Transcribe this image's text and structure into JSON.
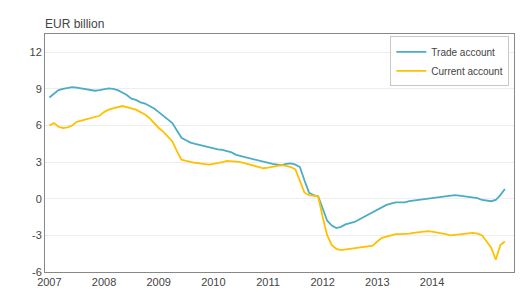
{
  "chart_data": {
    "type": "line",
    "title": "EUR billion",
    "x": [
      2007.0,
      2007.083,
      2007.167,
      2007.25,
      2007.333,
      2007.417,
      2007.5,
      2007.583,
      2007.667,
      2007.75,
      2007.833,
      2007.917,
      2008.0,
      2008.083,
      2008.167,
      2008.25,
      2008.333,
      2008.417,
      2008.5,
      2008.583,
      2008.667,
      2008.75,
      2008.833,
      2008.917,
      2009.0,
      2009.083,
      2009.167,
      2009.25,
      2009.333,
      2009.417,
      2009.5,
      2009.583,
      2009.667,
      2009.75,
      2009.833,
      2009.917,
      2010.0,
      2010.083,
      2010.167,
      2010.25,
      2010.333,
      2010.417,
      2010.5,
      2010.583,
      2010.667,
      2010.75,
      2010.833,
      2010.917,
      2011.0,
      2011.083,
      2011.167,
      2011.25,
      2011.333,
      2011.417,
      2011.5,
      2011.583,
      2011.667,
      2011.75,
      2011.833,
      2011.917,
      2012.0,
      2012.083,
      2012.167,
      2012.25,
      2012.333,
      2012.417,
      2012.5,
      2012.583,
      2012.667,
      2012.75,
      2012.833,
      2012.917,
      2013.0,
      2013.083,
      2013.167,
      2013.25,
      2013.333,
      2013.417,
      2013.5,
      2013.583,
      2013.667,
      2013.75,
      2013.833,
      2013.917,
      2014.0,
      2014.083,
      2014.167,
      2014.25,
      2014.333,
      2014.417,
      2014.5,
      2014.583,
      2014.667,
      2014.75,
      2014.833,
      2014.917,
      2015.0,
      2015.083,
      2015.167,
      2015.25,
      2015.333
    ],
    "series": [
      {
        "name": "Trade account",
        "color": "#4BACC6",
        "values": [
          8.3,
          8.6,
          8.9,
          9.0,
          9.1,
          9.15,
          9.1,
          9.05,
          9.0,
          8.9,
          8.85,
          8.9,
          9.0,
          9.05,
          9.0,
          8.9,
          8.7,
          8.5,
          8.2,
          8.1,
          7.9,
          7.8,
          7.6,
          7.4,
          7.1,
          6.8,
          6.5,
          6.2,
          5.6,
          5.0,
          4.8,
          4.6,
          4.5,
          4.4,
          4.3,
          4.2,
          4.1,
          4.05,
          4.0,
          3.9,
          3.8,
          3.6,
          3.5,
          3.4,
          3.3,
          3.2,
          3.1,
          3.0,
          2.9,
          2.85,
          2.8,
          2.75,
          2.85,
          2.9,
          2.8,
          2.6,
          1.5,
          0.5,
          0.3,
          0.2,
          -0.8,
          -1.8,
          -2.2,
          -2.4,
          -2.3,
          -2.1,
          -2.0,
          -1.9,
          -1.7,
          -1.5,
          -1.3,
          -1.1,
          -0.9,
          -0.7,
          -0.5,
          -0.4,
          -0.3,
          -0.3,
          -0.3,
          -0.2,
          -0.15,
          -0.1,
          -0.05,
          0.0,
          0.1,
          0.15,
          0.2,
          0.25,
          0.3,
          0.3,
          0.25,
          0.2,
          0.15,
          0.1,
          0.05,
          -0.1,
          -0.15,
          -0.2,
          -0.1,
          0.3,
          0.8
        ]
      },
      {
        "name": "Current account",
        "color": "#FFC000",
        "values": [
          6.0,
          6.2,
          5.9,
          5.8,
          5.85,
          6.0,
          6.3,
          6.4,
          6.5,
          6.6,
          6.7,
          6.8,
          7.1,
          7.3,
          7.4,
          7.5,
          7.6,
          7.5,
          7.4,
          7.3,
          7.1,
          6.9,
          6.6,
          6.2,
          5.8,
          5.5,
          5.1,
          4.7,
          3.9,
          3.2,
          3.1,
          3.0,
          2.95,
          2.9,
          2.85,
          2.8,
          2.85,
          2.9,
          3.0,
          3.1,
          3.1,
          3.05,
          3.0,
          2.9,
          2.8,
          2.7,
          2.6,
          2.5,
          2.55,
          2.6,
          2.7,
          2.75,
          2.7,
          2.6,
          2.4,
          1.5,
          0.5,
          0.3,
          0.25,
          0.2,
          -1.5,
          -3.0,
          -3.8,
          -4.1,
          -4.2,
          -4.15,
          -4.1,
          -4.05,
          -4.0,
          -3.95,
          -3.9,
          -3.85,
          -3.5,
          -3.2,
          -3.1,
          -3.0,
          -2.9,
          -2.9,
          -2.9,
          -2.85,
          -2.8,
          -2.75,
          -2.7,
          -2.65,
          -2.7,
          -2.75,
          -2.8,
          -2.9,
          -3.0,
          -2.95,
          -2.9,
          -2.85,
          -2.8,
          -2.8,
          -2.85,
          -3.0,
          -3.5,
          -4.0,
          -5.0,
          -3.8,
          -3.5
        ]
      }
    ],
    "xlim": [
      2006.92,
      2015.5
    ],
    "xticks": [
      2007,
      2008,
      2009,
      2010,
      2011,
      2012,
      2013,
      2014
    ],
    "ylim": [
      -6,
      13.5
    ],
    "yticks": [
      -6,
      -3,
      0,
      3,
      6,
      9,
      12
    ],
    "grid": "y",
    "legend": "upper right"
  }
}
